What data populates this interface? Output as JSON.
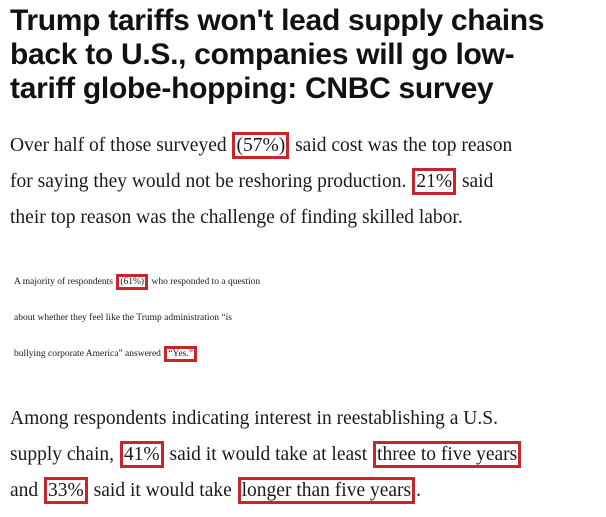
{
  "headline": {
    "line1": "Trump tariffs won't lead supply chains",
    "line2": "back to U.S., companies will go low-",
    "line3": "tariff globe-hopping: CNBC survey"
  },
  "paragraph1": {
    "l1_pre": "Over half of those surveyed",
    "l1_hl": "(57%)",
    "l1_post": "said cost was the top reason",
    "l2_pre": "for saying they would not be reshoring production.",
    "l2_hl": "21%",
    "l2_post": "said",
    "l3": "their top reason was the challenge of finding skilled labor."
  },
  "paragraph2": {
    "l1_pre": "A majority of respondents",
    "l1_hl": "(61%)",
    "l1_post": "who responded to a question",
    "l2": "about whether they feel like the Trump administration “is",
    "l3_pre": "bullying corporate America” answered",
    "l3_hl": "“Yes.”"
  },
  "paragraph3": {
    "l1": "Among respondents indicating interest in reestablishing a U.S.",
    "l2_pre": "supply chain,",
    "l2_hl1": "41%",
    "l2_mid": "said it would take at least",
    "l2_hl2": "three to five years",
    "l3_pre": "and",
    "l3_hl1": "33%",
    "l3_mid": "said it would take",
    "l3_hl2": "longer than five years",
    "l3_post": "."
  },
  "colors": {
    "highlight_border": "#c8242b",
    "text": "#1a1a1a",
    "background": "#ffffff"
  }
}
